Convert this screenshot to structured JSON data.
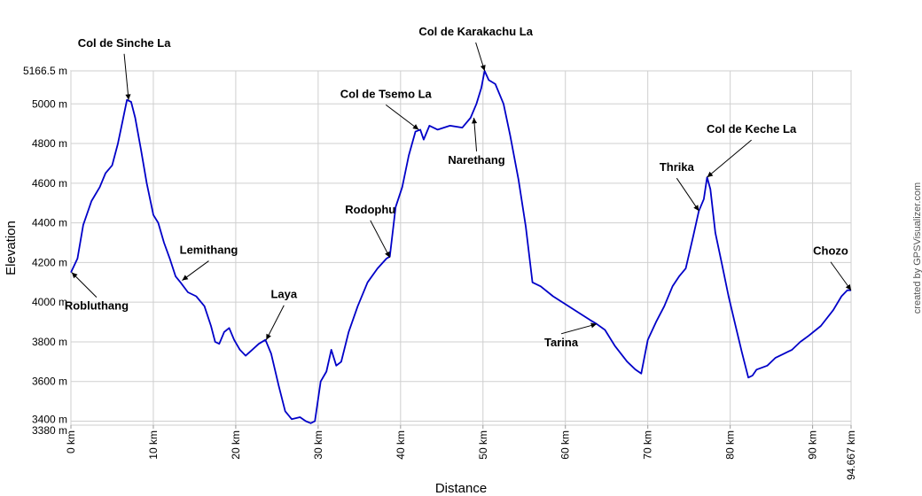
{
  "chart_data": {
    "type": "line",
    "xlabel": "Distance",
    "ylabel": "Elevation",
    "credit": "created by GPSVisualizer.com",
    "xlim": [
      0,
      94.667
    ],
    "ylim": [
      3380,
      5166.5
    ],
    "grid": true,
    "line_color": "#0000c8",
    "x_ticks": [
      {
        "value": 0,
        "label": "0 km"
      },
      {
        "value": 10,
        "label": "10 km"
      },
      {
        "value": 20,
        "label": "20 km"
      },
      {
        "value": 30,
        "label": "30 km"
      },
      {
        "value": 40,
        "label": "40 km"
      },
      {
        "value": 50,
        "label": "50 km"
      },
      {
        "value": 60,
        "label": "60 km"
      },
      {
        "value": 70,
        "label": "70 km"
      },
      {
        "value": 80,
        "label": "80 km"
      },
      {
        "value": 90,
        "label": "90 km"
      },
      {
        "value": 94.667,
        "label": "94.667 km"
      }
    ],
    "y_ticks": [
      {
        "value": 3380,
        "label": "3380 m"
      },
      {
        "value": 3400,
        "label": "3400 m"
      },
      {
        "value": 3600,
        "label": "3600 m"
      },
      {
        "value": 3800,
        "label": "3800 m"
      },
      {
        "value": 4000,
        "label": "4000 m"
      },
      {
        "value": 4200,
        "label": "4200 m"
      },
      {
        "value": 4400,
        "label": "4400 m"
      },
      {
        "value": 4600,
        "label": "4600 m"
      },
      {
        "value": 4800,
        "label": "4800 m"
      },
      {
        "value": 5000,
        "label": "5000 m"
      },
      {
        "value": 5166.5,
        "label": "5166.5 m"
      }
    ],
    "series": [
      {
        "x": [
          0,
          0.8,
          1.5,
          2.5,
          3.5,
          4.2,
          5,
          5.7,
          6.3,
          6.8,
          7.3,
          7.8,
          8.5,
          9.2,
          10,
          10.6,
          11.3,
          12,
          12.7,
          13.3,
          14.2,
          15.2,
          16.2,
          17,
          17.5,
          18,
          18.6,
          19.2,
          19.8,
          20.5,
          21.2,
          22,
          22.8,
          23.6,
          24.3,
          25.2,
          26,
          26.8,
          27.8,
          28.5,
          29.1,
          29.6,
          30.3,
          31,
          31.6,
          32.2,
          32.8,
          33.7,
          34.8,
          36,
          37.2,
          38.3,
          38.7,
          39.4,
          40.2,
          41,
          41.8,
          42.4,
          42.8,
          43.5,
          44.5,
          46,
          47.5,
          48.5,
          49.2,
          49.8,
          50.2,
          50.7,
          51.5,
          52.5,
          53.3,
          54.3,
          55.2,
          56,
          57,
          58.5,
          60,
          61.5,
          63,
          63.8,
          64.8,
          66,
          67.5,
          68.5,
          69.2,
          70,
          71,
          72,
          73,
          73.8,
          74.6,
          75.5,
          76.2,
          76.8,
          77.2,
          77.6,
          78.2,
          79,
          79.8,
          80.6,
          81.4,
          82.2,
          82.7,
          83.2,
          84.5,
          85.5,
          86.5,
          87.5,
          88.5,
          89.5,
          91,
          92.5,
          93.5,
          94.2,
          94.667
        ],
        "y": [
          4150,
          4220,
          4390,
          4510,
          4580,
          4650,
          4690,
          4800,
          4920,
          5020,
          5010,
          4930,
          4770,
          4600,
          4440,
          4400,
          4300,
          4220,
          4130,
          4100,
          4050,
          4030,
          3980,
          3880,
          3800,
          3790,
          3850,
          3870,
          3810,
          3760,
          3730,
          3760,
          3790,
          3810,
          3740,
          3580,
          3450,
          3410,
          3420,
          3400,
          3390,
          3400,
          3600,
          3650,
          3760,
          3680,
          3700,
          3850,
          3980,
          4100,
          4170,
          4220,
          4230,
          4480,
          4580,
          4740,
          4860,
          4870,
          4820,
          4890,
          4870,
          4890,
          4880,
          4930,
          5000,
          5080,
          5166.5,
          5120,
          5100,
          5000,
          4840,
          4620,
          4380,
          4100,
          4080,
          4030,
          3990,
          3950,
          3910,
          3890,
          3860,
          3780,
          3700,
          3660,
          3640,
          3810,
          3900,
          3980,
          4080,
          4130,
          4170,
          4330,
          4460,
          4520,
          4630,
          4570,
          4350,
          4190,
          4030,
          3890,
          3750,
          3620,
          3630,
          3660,
          3680,
          3720,
          3740,
          3760,
          3800,
          3830,
          3880,
          3960,
          4030,
          4060,
          4060
        ]
      }
    ],
    "annotations": [
      {
        "label": "Col de Sinche La",
        "x": 7.0,
        "y": 5020
      },
      {
        "label": "Robluthang",
        "x": 0.1,
        "y": 4150
      },
      {
        "label": "Lemithang",
        "x": 13.5,
        "y": 4110
      },
      {
        "label": "Laya",
        "x": 23.7,
        "y": 3810
      },
      {
        "label": "Rodophu",
        "x": 38.7,
        "y": 4225
      },
      {
        "label": "Col de Tsemo La",
        "x": 42.2,
        "y": 4870
      },
      {
        "label": "Narethang",
        "x": 48.9,
        "y": 4930
      },
      {
        "label": "Col de Karakachu La",
        "x": 50.2,
        "y": 5166.5
      },
      {
        "label": "Tarina",
        "x": 63.8,
        "y": 3890
      },
      {
        "label": "Thrika",
        "x": 76.2,
        "y": 4460
      },
      {
        "label": "Col de Keche La",
        "x": 77.2,
        "y": 4630
      },
      {
        "label": "Chozo",
        "x": 94.667,
        "y": 4060
      }
    ]
  }
}
